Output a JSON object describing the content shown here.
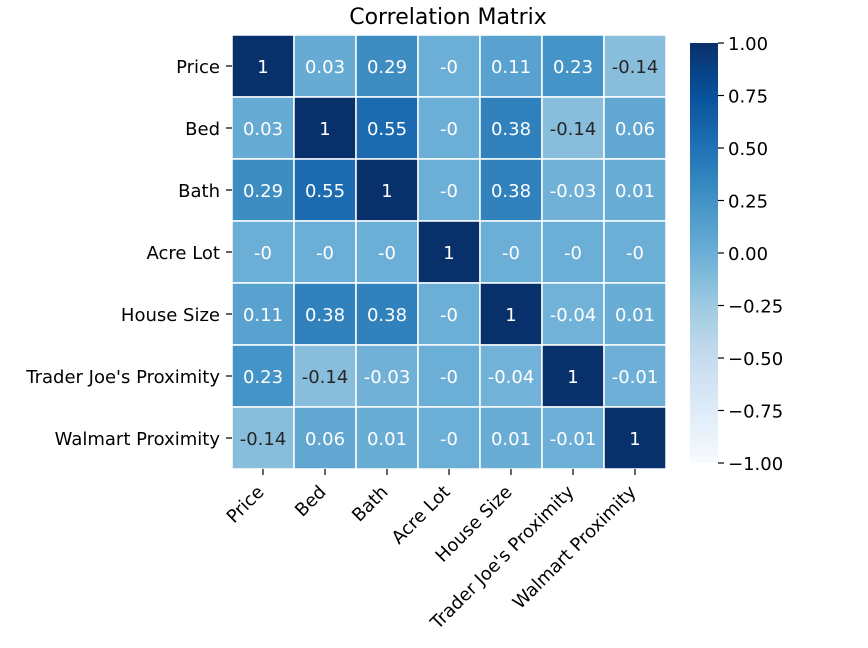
{
  "chart_data": {
    "type": "heatmap",
    "title": "Correlation Matrix",
    "row_labels": [
      "Price",
      "Bed",
      "Bath",
      "Acre Lot",
      "House Size",
      "Trader Joe's Proximity",
      "Walmart Proximity"
    ],
    "col_labels": [
      "Price",
      "Bed",
      "Bath",
      "Acre Lot",
      "House Size",
      "Trader Joe's Proximity",
      "Walmart Proximity"
    ],
    "values": [
      [
        1,
        0.03,
        0.29,
        -0.0,
        0.11,
        0.23,
        -0.14
      ],
      [
        0.03,
        1,
        0.55,
        -0.0,
        0.38,
        -0.14,
        0.06
      ],
      [
        0.29,
        0.55,
        1,
        -0.0,
        0.38,
        -0.03,
        0.01
      ],
      [
        -0.0,
        -0.0,
        -0.0,
        1,
        -0.0,
        -0.0,
        -0.0
      ],
      [
        0.11,
        0.38,
        0.38,
        -0.0,
        1,
        -0.04,
        0.01
      ],
      [
        0.23,
        -0.14,
        -0.03,
        -0.0,
        -0.04,
        1,
        -0.01
      ],
      [
        -0.14,
        0.06,
        0.01,
        -0.0,
        0.01,
        -0.01,
        1
      ]
    ],
    "value_labels": [
      [
        "1",
        "0.03",
        "0.29",
        "-0",
        "0.11",
        "0.23",
        "-0.14"
      ],
      [
        "0.03",
        "1",
        "0.55",
        "-0",
        "0.38",
        "-0.14",
        "0.06"
      ],
      [
        "0.29",
        "0.55",
        "1",
        "-0",
        "0.38",
        "-0.03",
        "0.01"
      ],
      [
        "-0",
        "-0",
        "-0",
        "1",
        "-0",
        "-0",
        "-0"
      ],
      [
        "0.11",
        "0.38",
        "0.38",
        "-0",
        "1",
        "-0.04",
        "0.01"
      ],
      [
        "0.23",
        "-0.14",
        "-0.03",
        "-0",
        "-0.04",
        "1",
        "-0.01"
      ],
      [
        "-0.14",
        "0.06",
        "0.01",
        "-0",
        "0.01",
        "-0.01",
        "1"
      ]
    ],
    "colormap": "Blues",
    "vmin": -1.0,
    "vmax": 1.0,
    "colorbar_ticks": [
      1.0,
      0.75,
      0.5,
      0.25,
      0.0,
      -0.25,
      -0.5,
      -0.75,
      -1.0
    ],
    "colorbar_tick_labels": [
      "1.00",
      "0.75",
      "0.50",
      "0.25",
      "0.00",
      "−0.25",
      "−0.50",
      "−0.75",
      "−1.00"
    ],
    "grid": false,
    "cell_border_color": "#ffffff",
    "legend": "colorbar right"
  }
}
